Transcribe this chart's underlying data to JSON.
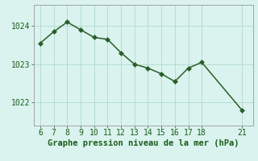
{
  "x": [
    6,
    7,
    8,
    9,
    10,
    11,
    12,
    13,
    14,
    15,
    16,
    17,
    18,
    21
  ],
  "y": [
    1023.55,
    1023.85,
    1024.1,
    1023.9,
    1023.7,
    1023.65,
    1023.3,
    1023.0,
    1022.9,
    1022.75,
    1022.55,
    1022.9,
    1023.05,
    1021.8
  ],
  "xticks": [
    6,
    7,
    8,
    9,
    10,
    11,
    12,
    13,
    14,
    15,
    16,
    17,
    18,
    21
  ],
  "yticks": [
    1022,
    1023,
    1024
  ],
  "ylim": [
    1021.4,
    1024.55
  ],
  "xlim": [
    5.5,
    21.8
  ],
  "line_color": "#2a5e2a",
  "marker": "D",
  "marker_color": "#2a5e2a",
  "bg_color": "#daf3ee",
  "grid_color": "#b0d8cc",
  "xlabel": "Graphe pression niveau de la mer (hPa)",
  "xlabel_color": "#1a5c1a",
  "xlabel_fontsize": 7.5,
  "tick_color": "#1a5c1a",
  "tick_fontsize": 7,
  "linewidth": 1.1,
  "markersize": 3
}
